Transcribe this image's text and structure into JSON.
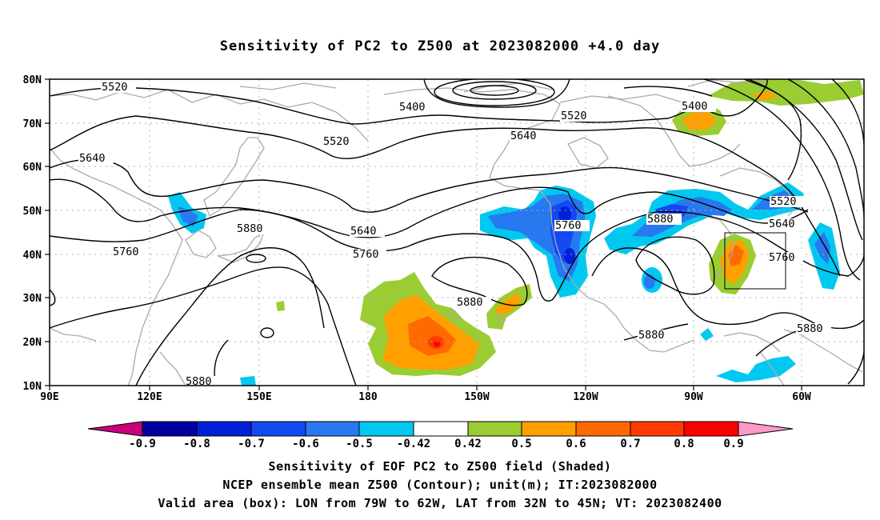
{
  "title": "Sensitivity of PC2 to Z500 at 2023082000 +4.0 day",
  "map": {
    "lat_labels": [
      "80N",
      "70N",
      "60N",
      "50N",
      "40N",
      "30N",
      "20N",
      "10N"
    ],
    "lon_labels": [
      "90E",
      "120E",
      "150E",
      "180",
      "150W",
      "120W",
      "90W",
      "60W"
    ],
    "contour_labels": [
      "5520",
      "5400",
      "5520",
      "5640",
      "5520",
      "5640",
      "5400",
      "5520",
      "5640",
      "5760",
      "5760",
      "5880",
      "5640",
      "5760",
      "5880",
      "5880",
      "5760",
      "5880",
      "5880",
      "5880"
    ],
    "valid_box": {
      "lon_range": [
        "79W",
        "62W"
      ],
      "lat_range": [
        "32N",
        "45N"
      ]
    }
  },
  "colorbar": {
    "labels": [
      "-0.9",
      "-0.8",
      "-0.7",
      "-0.6",
      "-0.5",
      "-0.42",
      "0.42",
      "0.5",
      "0.6",
      "0.7",
      "0.8",
      "0.9"
    ],
    "colors": [
      "#c8007a",
      "#0000a0",
      "#0020d8",
      "#1448f0",
      "#2878f0",
      "#50a0f0",
      "#00c8f0",
      "#ffffff",
      "#9acd32",
      "#ffa000",
      "#ff6a00",
      "#ff3c00",
      "#ff0000",
      "#ff9ac8"
    ]
  },
  "footer": {
    "line1": "Sensitivity of EOF PC2 to Z500 field (Shaded)",
    "line2": "NCEP ensemble mean Z500 (Contour); unit(m); IT:2023082000",
    "line3": "Valid area (box): LON from 79W to 62W, LAT from 32N to 45N; VT: 2023082400"
  }
}
